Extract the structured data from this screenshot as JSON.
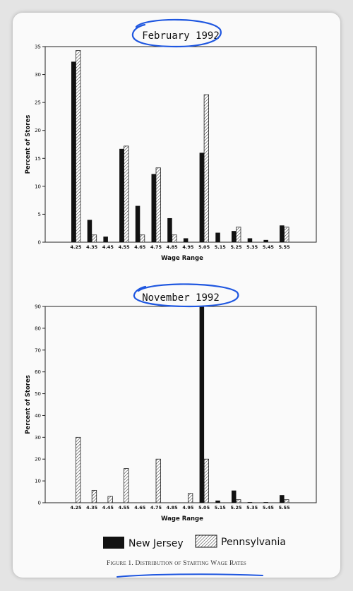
{
  "chart_data": [
    {
      "type": "bar",
      "title": "February 1992",
      "xlabel": "Wage Range",
      "ylabel": "Percent of Stores",
      "ylim": [
        0,
        35
      ],
      "yticks": [
        0,
        5,
        10,
        15,
        20,
        25,
        30,
        35
      ],
      "categories": [
        "4.25",
        "4.35",
        "4.45",
        "4.55",
        "4.65",
        "4.75",
        "4.85",
        "4.95",
        "5.05",
        "5.15",
        "5.25",
        "5.35",
        "5.45",
        "5.55"
      ],
      "series": [
        {
          "name": "New Jersey",
          "values": [
            32.3,
            4.0,
            1.0,
            16.7,
            6.5,
            12.2,
            4.3,
            0.7,
            16.0,
            1.7,
            2.0,
            0.7,
            0.4,
            3.0
          ]
        },
        {
          "name": "Pennsylvania",
          "values": [
            34.3,
            1.3,
            0,
            17.2,
            1.3,
            13.3,
            1.3,
            0,
            26.4,
            0,
            2.7,
            0,
            0,
            2.7
          ]
        }
      ],
      "grid": false,
      "legend": "bottom"
    },
    {
      "type": "bar",
      "title": "November 1992",
      "xlabel": "Wage Range",
      "ylabel": "Percent of Stores",
      "ylim": [
        0,
        90
      ],
      "yticks": [
        0,
        10,
        20,
        30,
        40,
        50,
        60,
        70,
        80,
        90
      ],
      "categories": [
        "4.25",
        "4.35",
        "4.45",
        "4.55",
        "4.65",
        "4.75",
        "4.85",
        "4.95",
        "5.05",
        "5.15",
        "5.25",
        "5.35",
        "5.45",
        "5.55"
      ],
      "series": [
        {
          "name": "New Jersey",
          "values": [
            0,
            0,
            0,
            0,
            0,
            0,
            0,
            0,
            90,
            1.0,
            5.6,
            0.3,
            0.3,
            3.5
          ]
        },
        {
          "name": "Pennsylvania",
          "values": [
            30.0,
            5.7,
            2.9,
            15.7,
            0,
            20.0,
            0,
            4.3,
            20.0,
            0,
            1.4,
            0,
            0,
            1.4
          ]
        }
      ],
      "grid": false,
      "legend": "bottom"
    }
  ],
  "legend": {
    "items": [
      {
        "label": "New Jersey",
        "swatch": "solid"
      },
      {
        "label": "Pennsylvania",
        "swatch": "hatched"
      }
    ]
  },
  "caption": "Figure 1. Distribution of Starting Wage Rates",
  "colors": {
    "new_jersey": "#111111",
    "pennsylvania": "#ffffff",
    "annotation_ink": "#1f57e0"
  }
}
